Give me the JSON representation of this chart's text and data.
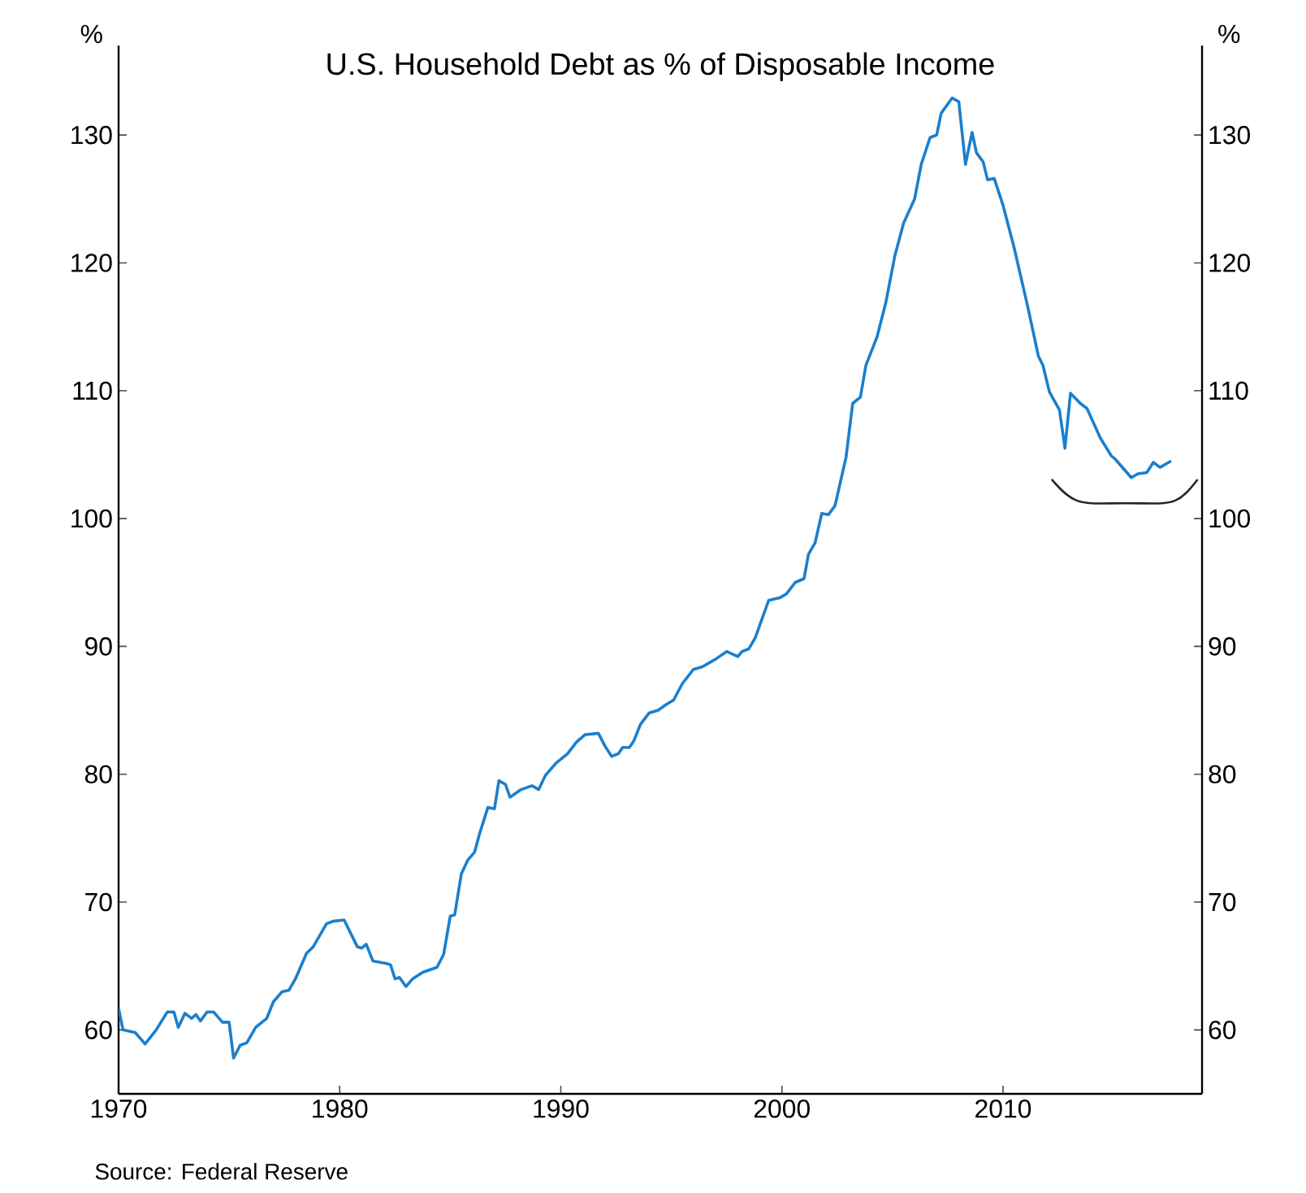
{
  "chart_data": {
    "type": "line",
    "title": "U.S. Household Debt as % of Disposable Income",
    "ylabel": "%",
    "y2label": "%",
    "annotations": [
      "Source: Federal Reserve"
    ],
    "xlim": [
      1970,
      2019
    ],
    "xticks": [
      1970,
      1980,
      1990,
      2000,
      2010
    ],
    "ylim": [
      55,
      137
    ],
    "yticks": [
      60,
      70,
      80,
      90,
      100,
      110,
      120,
      130
    ],
    "y2lim": [
      55,
      137
    ],
    "y2ticks": [
      60,
      70,
      80,
      90,
      100,
      110,
      120,
      130
    ],
    "marker": "none",
    "line_style": "solid",
    "series": [
      {
        "color": "#1a7fce",
        "x": [
          1970.0,
          1970.2,
          1970.75,
          1971.2,
          1971.7,
          1972.2,
          1972.5,
          1972.7,
          1973.0,
          1973.3,
          1973.5,
          1973.7,
          1974.0,
          1974.3,
          1974.7,
          1975.0,
          1975.2,
          1975.5,
          1975.8,
          1976.2,
          1976.7,
          1977.0,
          1977.4,
          1977.7,
          1978.0,
          1978.5,
          1978.8,
          1979.4,
          1979.7,
          1980.2,
          1980.8,
          1981.0,
          1981.2,
          1981.5,
          1982.1,
          1982.3,
          1982.5,
          1982.7,
          1983.0,
          1983.3,
          1983.75,
          1984.4,
          1984.7,
          1985.0,
          1985.2,
          1985.5,
          1985.8,
          1986.1,
          1986.3,
          1986.7,
          1987.0,
          1987.2,
          1987.5,
          1987.7,
          1988.2,
          1988.7,
          1989.0,
          1989.3,
          1989.8,
          1990.3,
          1990.7,
          1991.1,
          1991.7,
          1992.0,
          1992.3,
          1992.6,
          1992.8,
          1993.1,
          1993.3,
          1993.6,
          1994.0,
          1994.4,
          1994.8,
          1995.1,
          1995.5,
          1996.0,
          1996.4,
          1997.0,
          1997.5,
          1998.0,
          1998.2,
          1998.5,
          1998.8,
          1999.4,
          1999.9,
          2000.2,
          2000.6,
          2001.0,
          2001.2,
          2001.5,
          2001.8,
          2002.1,
          2002.4,
          2002.9,
          2003.2,
          2003.55,
          2003.8,
          2004.3,
          2004.7,
          2005.1,
          2005.5,
          2006.0,
          2006.3,
          2006.7,
          2007.0,
          2007.2,
          2007.7,
          2008.0,
          2008.3,
          2008.6,
          2008.8,
          2009.1,
          2009.3,
          2009.6,
          2010.0,
          2010.5,
          2011.1,
          2011.6,
          2011.8,
          2012.1,
          2012.55,
          2012.8,
          2013.05,
          2013.5,
          2013.8,
          2014.4,
          2014.9,
          2015.1,
          2015.8,
          2016.1,
          2016.5,
          2016.8,
          2017.1,
          2017.6
        ],
        "values": [
          61.7,
          60.0,
          59.8,
          58.9,
          60.0,
          61.4,
          61.4,
          60.2,
          61.3,
          60.9,
          61.2,
          60.7,
          61.4,
          61.4,
          60.6,
          60.6,
          57.8,
          58.8,
          59.0,
          60.2,
          60.9,
          62.2,
          63.0,
          63.1,
          64.0,
          66.0,
          66.5,
          68.3,
          68.5,
          68.6,
          66.5,
          66.4,
          66.7,
          65.4,
          65.2,
          65.1,
          64.0,
          64.1,
          63.4,
          64.0,
          64.5,
          64.9,
          65.9,
          68.9,
          69.0,
          72.2,
          73.3,
          73.9,
          75.2,
          77.4,
          77.3,
          79.5,
          79.2,
          78.2,
          78.8,
          79.1,
          78.8,
          79.9,
          80.9,
          81.6,
          82.5,
          83.1,
          83.2,
          82.2,
          81.4,
          81.6,
          82.1,
          82.1,
          82.6,
          83.9,
          84.8,
          85.0,
          85.5,
          85.8,
          87.1,
          88.2,
          88.4,
          89.0,
          89.6,
          89.2,
          89.6,
          89.8,
          90.7,
          93.6,
          93.8,
          94.1,
          95.0,
          95.3,
          97.2,
          98.1,
          100.4,
          100.3,
          101.0,
          104.8,
          109.0,
          109.5,
          112.0,
          114.2,
          116.9,
          120.5,
          123.1,
          125.0,
          127.7,
          129.8,
          130.0,
          131.7,
          132.9,
          132.6,
          127.7,
          130.2,
          128.6,
          127.9,
          126.5,
          126.6,
          124.5,
          121.2,
          116.7,
          112.7,
          112.0,
          109.9,
          108.5,
          105.5,
          109.8,
          109.0,
          108.6,
          106.3,
          104.9,
          104.6,
          103.2,
          103.5,
          103.6,
          104.4,
          104.0,
          104.5
        ]
      }
    ]
  }
}
